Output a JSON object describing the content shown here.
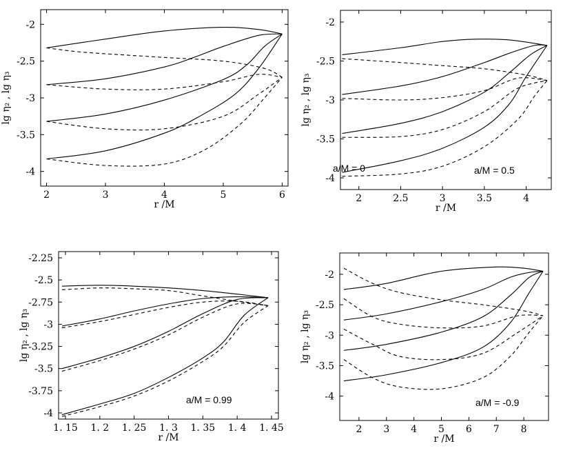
{
  "chart_data": [
    {
      "type": "line",
      "annotation": "a/M = 0",
      "xlabel": "r /M",
      "ylabel": "lg η₂ , lg η₃",
      "xlim": [
        1.9,
        6.1
      ],
      "ylim": [
        -4.2,
        -1.8
      ],
      "xticks": [
        2,
        3,
        4,
        5,
        6
      ],
      "xtick_labels": [
        "2",
        "3",
        "4",
        "5",
        "6"
      ],
      "yticks": [
        -4,
        -3.5,
        -3,
        -2.5,
        -2
      ],
      "ytick_labels": [
        "-4",
        "-3.5",
        "-3",
        "-2.5",
        "-2"
      ],
      "grid": false,
      "series": [
        {
          "style": "solid",
          "x": [
            2,
            3,
            4,
            5,
            5.6,
            6
          ],
          "y": [
            -2.32,
            -2.2,
            -2.09,
            -2.04,
            -2.07,
            -2.13
          ]
        },
        {
          "style": "solid",
          "x": [
            2,
            3,
            4,
            4.5,
            5,
            5.6,
            6
          ],
          "y": [
            -2.82,
            -2.74,
            -2.58,
            -2.45,
            -2.3,
            -2.15,
            -2.13
          ]
        },
        {
          "style": "solid",
          "x": [
            2,
            3,
            4,
            5,
            5.4,
            5.7,
            6
          ],
          "y": [
            -3.32,
            -3.22,
            -3.03,
            -2.75,
            -2.55,
            -2.3,
            -2.13
          ]
        },
        {
          "style": "solid",
          "x": [
            2,
            3,
            4,
            4.6,
            5.2,
            5.6,
            6
          ],
          "y": [
            -3.83,
            -3.72,
            -3.48,
            -3.25,
            -2.95,
            -2.6,
            -2.13
          ]
        },
        {
          "style": "dashed",
          "x": [
            2,
            2.5,
            3,
            4,
            5,
            5.7,
            6
          ],
          "y": [
            -2.32,
            -2.37,
            -2.4,
            -2.45,
            -2.5,
            -2.6,
            -2.72
          ]
        },
        {
          "style": "dashed",
          "x": [
            2,
            3,
            4,
            5,
            5.6,
            6
          ],
          "y": [
            -2.82,
            -2.88,
            -2.88,
            -2.78,
            -2.68,
            -2.72
          ]
        },
        {
          "style": "dashed",
          "x": [
            2,
            3,
            4,
            5,
            5.6,
            6
          ],
          "y": [
            -3.32,
            -3.42,
            -3.42,
            -3.25,
            -2.95,
            -2.72
          ]
        },
        {
          "style": "dashed",
          "x": [
            2,
            3,
            4,
            4.7,
            5.3,
            5.7,
            6
          ],
          "y": [
            -3.83,
            -3.92,
            -3.9,
            -3.7,
            -3.35,
            -3.0,
            -2.72
          ]
        }
      ]
    },
    {
      "type": "line",
      "annotation": "a/M = 0.5",
      "xlabel": "r /M",
      "ylabel": "lg η₂ , lg η₃",
      "xlim": [
        1.78,
        4.3
      ],
      "ylim": [
        -4.15,
        -1.85
      ],
      "xticks": [
        2,
        2.5,
        3,
        3.5,
        4
      ],
      "xtick_labels": [
        "2",
        "2.5",
        "3",
        "3.5",
        "4"
      ],
      "yticks": [
        -4,
        -3.5,
        -3,
        -2.5,
        -2
      ],
      "ytick_labels": [
        "-4",
        "-3.5",
        "-3",
        "-2.5",
        "-2"
      ],
      "grid": false,
      "series": [
        {
          "style": "solid",
          "x": [
            1.8,
            2.5,
            3,
            3.4,
            3.8,
            4.25
          ],
          "y": [
            -2.42,
            -2.33,
            -2.25,
            -2.22,
            -2.23,
            -2.3
          ]
        },
        {
          "style": "solid",
          "x": [
            1.8,
            2.5,
            3,
            3.5,
            3.8,
            4.1,
            4.25
          ],
          "y": [
            -2.93,
            -2.82,
            -2.7,
            -2.52,
            -2.4,
            -2.3,
            -2.3
          ]
        },
        {
          "style": "solid",
          "x": [
            1.8,
            2.5,
            3,
            3.5,
            3.8,
            4.05,
            4.25
          ],
          "y": [
            -3.43,
            -3.3,
            -3.15,
            -2.9,
            -2.65,
            -2.42,
            -2.3
          ]
        },
        {
          "style": "solid",
          "x": [
            1.8,
            2.5,
            3,
            3.5,
            3.8,
            4.0,
            4.25
          ],
          "y": [
            -3.93,
            -3.78,
            -3.62,
            -3.35,
            -3.05,
            -2.7,
            -2.3
          ]
        },
        {
          "style": "dashed",
          "x": [
            1.8,
            2.5,
            3,
            3.5,
            4,
            4.25
          ],
          "y": [
            -2.47,
            -2.52,
            -2.56,
            -2.6,
            -2.68,
            -2.75
          ]
        },
        {
          "style": "dashed",
          "x": [
            1.8,
            2.5,
            3,
            3.5,
            3.9,
            4.25
          ],
          "y": [
            -2.98,
            -3.0,
            -2.97,
            -2.88,
            -2.72,
            -2.75
          ]
        },
        {
          "style": "dashed",
          "x": [
            1.8,
            2.5,
            3,
            3.5,
            3.9,
            4.25
          ],
          "y": [
            -3.48,
            -3.47,
            -3.38,
            -3.15,
            -2.85,
            -2.75
          ]
        },
        {
          "style": "dashed",
          "x": [
            1.8,
            2.5,
            3,
            3.5,
            3.9,
            4.1,
            4.25
          ],
          "y": [
            -3.98,
            -3.95,
            -3.85,
            -3.6,
            -3.25,
            -2.95,
            -2.75
          ]
        }
      ]
    },
    {
      "type": "line",
      "annotation": "a/M = 0.99",
      "xlabel": "r /M",
      "ylabel": "lg η₂ , lg η₃",
      "xlim": [
        1.14,
        1.46
      ],
      "ylim": [
        -4.07,
        -2.18
      ],
      "xticks": [
        1.15,
        1.2,
        1.25,
        1.3,
        1.35,
        1.4,
        1.45
      ],
      "xtick_labels": [
        "1. 15",
        "1. 2",
        "1. 25",
        "1. 3",
        "1. 35",
        "1. 4",
        "1. 45"
      ],
      "yticks": [
        -4,
        -3.75,
        -3.5,
        -3.25,
        -3,
        -2.75,
        -2.5,
        -2.25
      ],
      "ytick_labels": [
        "-4",
        "-3.75",
        "-3.5",
        "-3.25",
        "-3",
        "-2.75",
        "-2.5",
        "-2.25"
      ],
      "grid": false,
      "series": [
        {
          "style": "solid",
          "x": [
            1.145,
            1.2,
            1.25,
            1.3,
            1.35,
            1.4,
            1.445
          ],
          "y": [
            -2.57,
            -2.56,
            -2.57,
            -2.59,
            -2.62,
            -2.66,
            -2.7
          ]
        },
        {
          "style": "solid",
          "x": [
            1.145,
            1.2,
            1.25,
            1.3,
            1.35,
            1.4,
            1.445
          ],
          "y": [
            -3.02,
            -2.94,
            -2.85,
            -2.77,
            -2.71,
            -2.69,
            -2.7
          ]
        },
        {
          "style": "solid",
          "x": [
            1.145,
            1.2,
            1.25,
            1.3,
            1.35,
            1.4,
            1.445
          ],
          "y": [
            -3.5,
            -3.38,
            -3.25,
            -3.08,
            -2.88,
            -2.72,
            -2.7
          ]
        },
        {
          "style": "solid",
          "x": [
            1.145,
            1.2,
            1.25,
            1.3,
            1.35,
            1.38,
            1.41,
            1.445
          ],
          "y": [
            -4.02,
            -3.9,
            -3.78,
            -3.6,
            -3.38,
            -3.2,
            -2.9,
            -2.7
          ]
        },
        {
          "style": "dashed",
          "x": [
            1.145,
            1.2,
            1.25,
            1.3,
            1.35,
            1.4,
            1.445
          ],
          "y": [
            -2.61,
            -2.59,
            -2.6,
            -2.62,
            -2.68,
            -2.74,
            -2.79
          ]
        },
        {
          "style": "dashed",
          "x": [
            1.145,
            1.2,
            1.25,
            1.3,
            1.35,
            1.4,
            1.445
          ],
          "y": [
            -3.04,
            -2.97,
            -2.89,
            -2.81,
            -2.75,
            -2.74,
            -2.79
          ]
        },
        {
          "style": "dashed",
          "x": [
            1.145,
            1.2,
            1.25,
            1.3,
            1.35,
            1.4,
            1.445
          ],
          "y": [
            -3.53,
            -3.41,
            -3.28,
            -3.12,
            -2.92,
            -2.77,
            -2.79
          ]
        },
        {
          "style": "dashed",
          "x": [
            1.145,
            1.2,
            1.25,
            1.3,
            1.35,
            1.38,
            1.41,
            1.445
          ],
          "y": [
            -4.04,
            -3.93,
            -3.81,
            -3.64,
            -3.42,
            -3.25,
            -2.98,
            -2.79
          ]
        }
      ]
    },
    {
      "type": "line",
      "annotation": "a/M = -0.9",
      "xlabel": "r /M",
      "ylabel": "lg η₂ , lg η₃",
      "xlim": [
        1.3,
        8.9
      ],
      "ylim": [
        -4.4,
        -1.65
      ],
      "xticks": [
        2,
        3,
        4,
        5,
        6,
        7,
        8
      ],
      "xtick_labels": [
        "2",
        "3",
        "4",
        "5",
        "6",
        "7",
        "8"
      ],
      "yticks": [
        -4,
        -3.5,
        -3,
        -2.5,
        -2
      ],
      "ytick_labels": [
        "-4",
        "-3.5",
        "-3",
        "-2.5",
        "-2"
      ],
      "grid": false,
      "series": [
        {
          "style": "solid",
          "x": [
            1.45,
            3,
            5,
            7,
            8,
            8.7
          ],
          "y": [
            -2.25,
            -2.15,
            -1.95,
            -1.88,
            -1.9,
            -1.95
          ]
        },
        {
          "style": "solid",
          "x": [
            1.45,
            3,
            5,
            6.5,
            7.5,
            8.2,
            8.7
          ],
          "y": [
            -2.75,
            -2.65,
            -2.45,
            -2.25,
            -2.05,
            -1.97,
            -1.95
          ]
        },
        {
          "style": "solid",
          "x": [
            1.45,
            3,
            5,
            6.5,
            7.5,
            8.2,
            8.7
          ],
          "y": [
            -3.25,
            -3.15,
            -2.95,
            -2.7,
            -2.35,
            -2.05,
            -1.95
          ]
        },
        {
          "style": "solid",
          "x": [
            1.45,
            3,
            5,
            6.5,
            7.5,
            8.2,
            8.7
          ],
          "y": [
            -3.75,
            -3.65,
            -3.45,
            -3.2,
            -2.8,
            -2.3,
            -1.95
          ]
        },
        {
          "style": "dashed",
          "x": [
            1.45,
            2.5,
            3.5,
            5,
            6.5,
            8,
            8.7
          ],
          "y": [
            -1.9,
            -2.15,
            -2.3,
            -2.42,
            -2.5,
            -2.6,
            -2.68
          ]
        },
        {
          "style": "dashed",
          "x": [
            1.45,
            2.5,
            3.5,
            5,
            6.5,
            7.8,
            8.7
          ],
          "y": [
            -2.4,
            -2.7,
            -2.82,
            -2.88,
            -2.85,
            -2.68,
            -2.68
          ]
        },
        {
          "style": "dashed",
          "x": [
            1.45,
            2.5,
            3.5,
            5,
            6.5,
            7.8,
            8.7
          ],
          "y": [
            -2.9,
            -3.15,
            -3.35,
            -3.4,
            -3.3,
            -2.95,
            -2.68
          ]
        },
        {
          "style": "dashed",
          "x": [
            1.45,
            2.5,
            3.5,
            5,
            6.5,
            7.5,
            8.2,
            8.7
          ],
          "y": [
            -3.4,
            -3.7,
            -3.85,
            -3.88,
            -3.7,
            -3.35,
            -2.95,
            -2.68
          ]
        }
      ]
    }
  ]
}
